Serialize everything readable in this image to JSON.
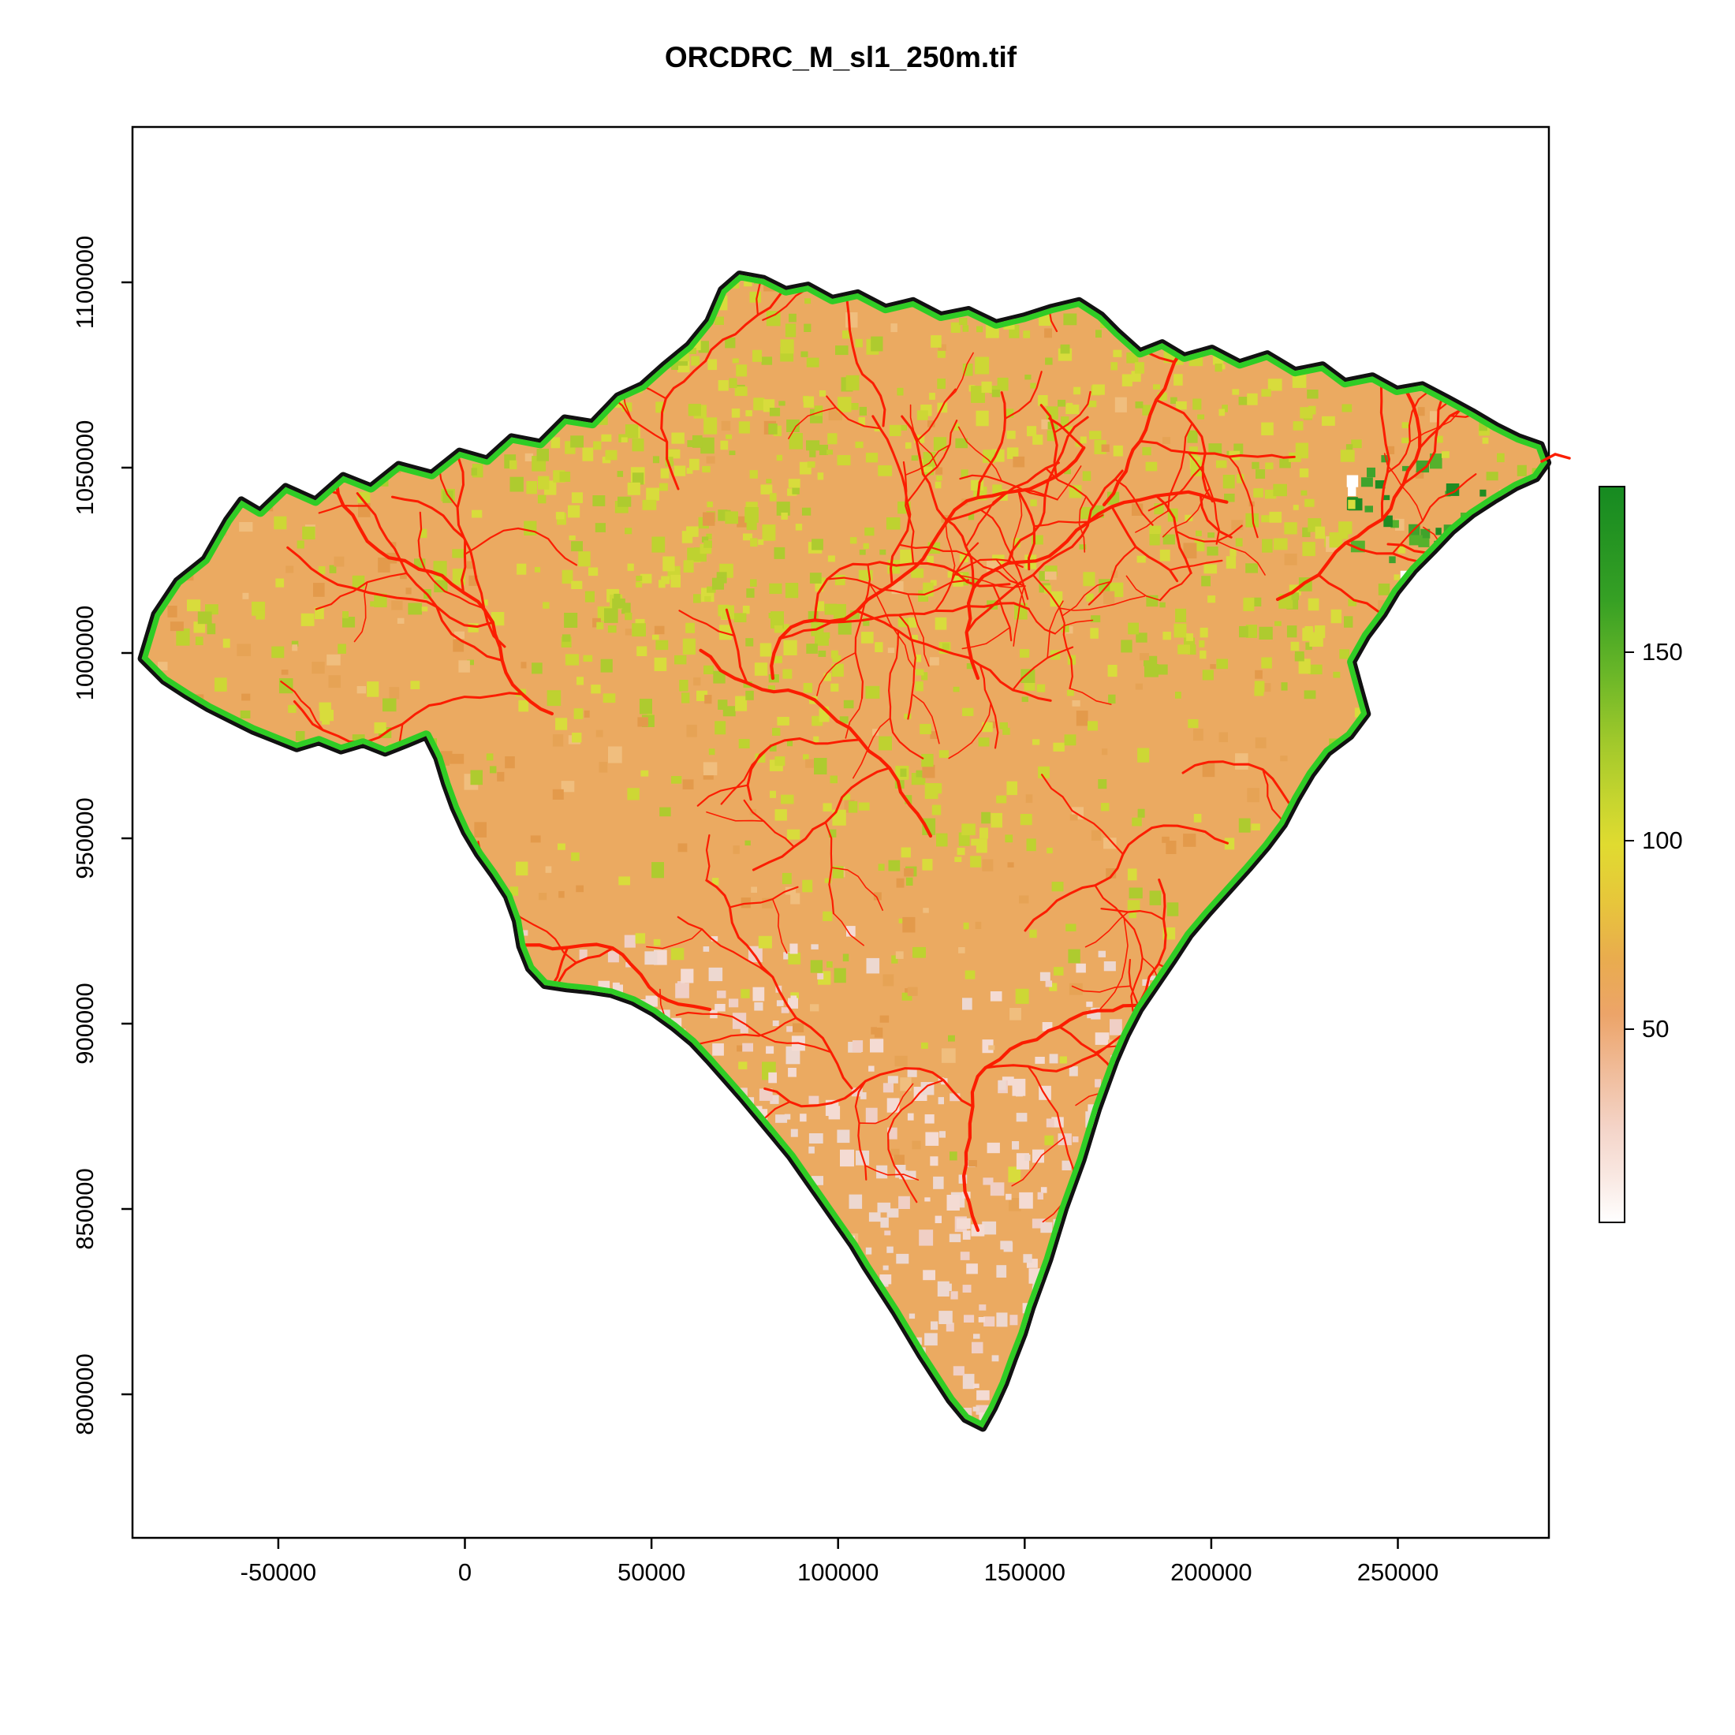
{
  "title": "ORCDRC_M_sl1_250m.tif",
  "chart_data": {
    "type": "heatmap",
    "title": "ORCDRC_M_sl1_250m.tif",
    "description_visible_layers": "",
    "x_tick_labels": [
      "-50000",
      "0",
      "50000",
      "100000",
      "150000",
      "200000",
      "250000"
    ],
    "x_tick_values": [
      -50000,
      0,
      50000,
      100000,
      150000,
      200000,
      250000
    ],
    "y_tick_labels": [
      "800000",
      "850000",
      "900000",
      "950000",
      "1000000",
      "1050000",
      "1100000"
    ],
    "y_tick_values": [
      800000,
      850000,
      900000,
      950000,
      1000000,
      1050000,
      1100000
    ],
    "xlim": [
      -89000,
      290000
    ],
    "ylim": [
      761000,
      1142000
    ],
    "legend": {
      "tick_labels": [
        "50",
        "100",
        "150"
      ],
      "tick_values": [
        50,
        100,
        150
      ],
      "range": [
        0,
        195
      ],
      "gradient_stops": [
        {
          "v": 0,
          "c": "#FFFFFF"
        },
        {
          "v": 12,
          "c": "#F9E8E2"
        },
        {
          "v": 25,
          "c": "#F4D4C8"
        },
        {
          "v": 40,
          "c": "#F0BC9A"
        },
        {
          "v": 55,
          "c": "#ECA469"
        },
        {
          "v": 70,
          "c": "#E9AC4E"
        },
        {
          "v": 85,
          "c": "#E7C63B"
        },
        {
          "v": 100,
          "c": "#E0DB30"
        },
        {
          "v": 112,
          "c": "#C6D52F"
        },
        {
          "v": 128,
          "c": "#9FC82B"
        },
        {
          "v": 145,
          "c": "#6BB728"
        },
        {
          "v": 165,
          "c": "#36A024"
        },
        {
          "v": 195,
          "c": "#168A21"
        }
      ]
    },
    "colors": {
      "raster_base": "#EBAA61",
      "raster_yellowgreen": [
        "#CDD735",
        "#BED230",
        "#D8DC3C",
        "#AECB2F"
      ],
      "raster_pink": [
        "#F4DBD3",
        "#F0CFC5",
        "#EDD8D0"
      ],
      "raster_darkgreen": [
        "#3FA32C",
        "#1E8C22",
        "#55B12C"
      ],
      "raster_orange_var": [
        "#E39A4B",
        "#F0BE7E",
        "#E6A355"
      ],
      "boundary_outer": "#111111",
      "boundary_inner": "#2FCC25",
      "stream": "#FB1D00",
      "plot_border": "#000000"
    }
  }
}
